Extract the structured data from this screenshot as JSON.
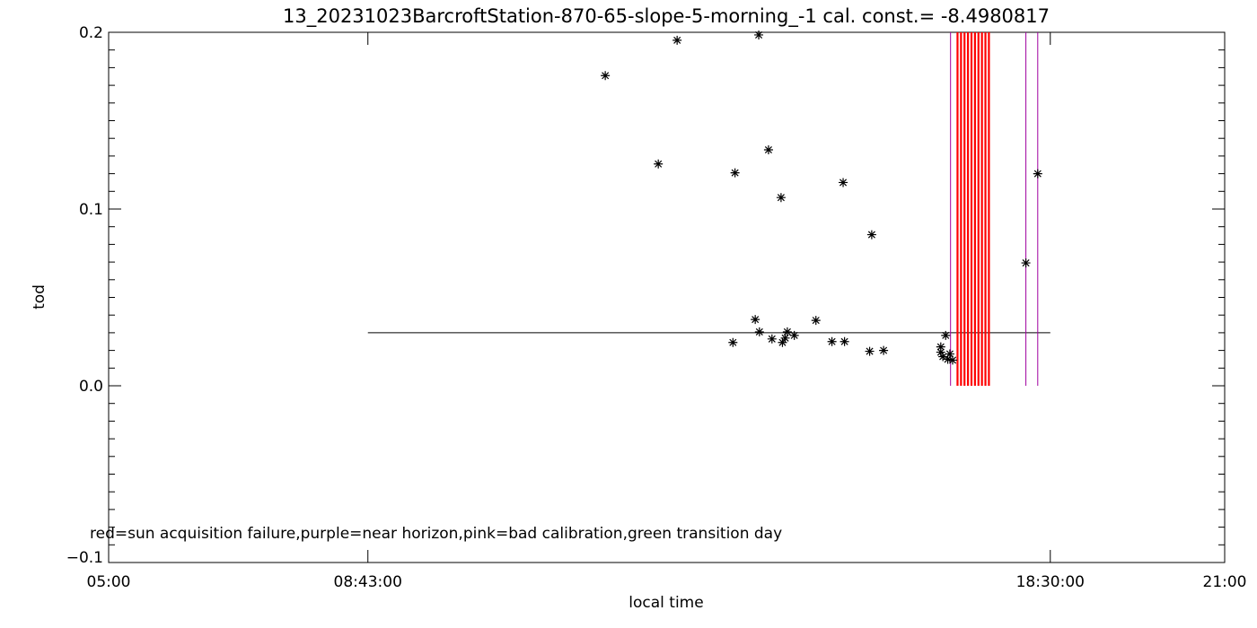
{
  "chart_data": {
    "type": "scatter",
    "title": "13_20231023BarcroftStation-870-65-slope-5-morning_-1 cal. const.= -8.4980817",
    "xlabel": "local time",
    "ylabel": "tod",
    "x_ticks": [
      "05:00",
      "08:43:00",
      "18:30:00",
      "21:00"
    ],
    "x_tick_hours": [
      5.0,
      8.7167,
      18.5,
      21.0
    ],
    "xlim_hours": [
      5.0,
      21.0
    ],
    "ylim": [
      -0.1,
      0.2
    ],
    "y_ticks": [
      -0.1,
      0.0,
      0.1,
      0.2
    ],
    "y_tick_labels": [
      "−0.1",
      "0.0",
      "0.1",
      "0.2"
    ],
    "footnote": "red=sun acquisition failure,purple=near horizon,pink=bad calibration,green transition day",
    "reference_line": {
      "y": 0.03,
      "x_start_hour": 8.7167,
      "x_end_hour": 18.5
    },
    "colors": {
      "points": "#000000",
      "red": "#ff0000",
      "purple": "#a000a0",
      "pink": "#ff4080"
    },
    "series": [
      {
        "marker": "asterisk",
        "x_hours": [
          12.12,
          12.88,
          13.15,
          13.95,
          13.98,
          14.27,
          14.33,
          14.32,
          14.46,
          14.51,
          14.64,
          14.7,
          14.66,
          14.73,
          14.83,
          15.14,
          15.37,
          15.55,
          15.53,
          15.91,
          15.94,
          16.11,
          16.96,
          17.0,
          17.03,
          17.06,
          17.1,
          16.93,
          16.93,
          18.15,
          18.32
        ],
        "y": [
          0.1755,
          0.1255,
          0.1955,
          0.0245,
          0.1205,
          0.0375,
          0.0305,
          0.1985,
          0.1335,
          0.0265,
          0.1065,
          0.027,
          0.0245,
          0.0305,
          0.0285,
          0.037,
          0.025,
          0.025,
          0.115,
          0.0195,
          0.0855,
          0.02,
          0.0165,
          0.0285,
          0.015,
          0.018,
          0.0145,
          0.022,
          0.019,
          0.0695,
          0.12
        ]
      }
    ],
    "flag_lines": [
      {
        "flag": "purple",
        "x_hours": [
          17.07,
          18.15,
          18.32
        ]
      },
      {
        "flag": "red",
        "x_hours": [
          17.17,
          17.22,
          17.27,
          17.32,
          17.37,
          17.42,
          17.47,
          17.52,
          17.57,
          17.62
        ]
      }
    ]
  }
}
